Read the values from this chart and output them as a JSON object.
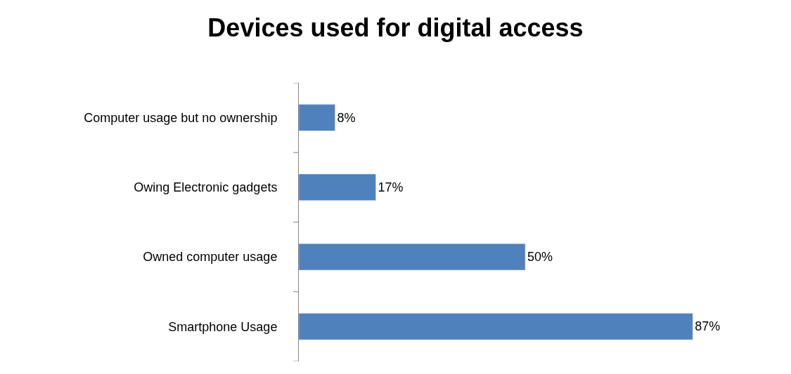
{
  "chart_data": {
    "type": "bar",
    "orientation": "horizontal",
    "title": "Devices used for digital access",
    "categories": [
      "Computer usage but no ownership",
      "Owing Electronic gadgets",
      "Owned computer usage",
      "Smartphone Usage"
    ],
    "values": [
      8,
      17,
      50,
      87
    ],
    "value_labels": [
      "8%",
      "17%",
      "50%",
      "87%"
    ],
    "color": "#4f81bd",
    "legend": false
  }
}
